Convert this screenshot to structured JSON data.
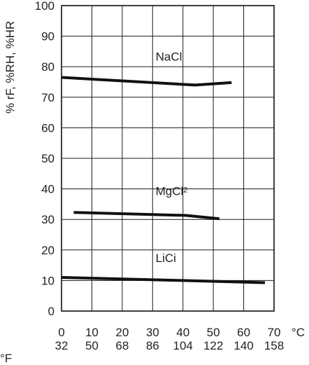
{
  "chart_data": {
    "type": "line",
    "title": "",
    "ylabel": "% rF, %RH, %HR",
    "x_unit_label": "°C",
    "x_secondary_unit_label": "°F",
    "xlim": [
      0,
      70
    ],
    "ylim": [
      0,
      100
    ],
    "grid": true,
    "x_ticks_celsius": [
      "0",
      "10",
      "20",
      "30",
      "40",
      "50",
      "60",
      "70"
    ],
    "x_ticks_fahrenheit": [
      "32",
      "50",
      "68",
      "86",
      "104",
      "122",
      "140",
      "158"
    ],
    "y_ticks": [
      "0",
      "10",
      "20",
      "30",
      "40",
      "50",
      "60",
      "70",
      "80",
      "90",
      "100"
    ],
    "series": [
      {
        "name": "NaCl",
        "label_text": "NaCl",
        "label_subscript": "",
        "label_at": [
          31,
          82
        ],
        "points": [
          [
            0,
            76.5
          ],
          [
            44,
            74.0
          ],
          [
            56,
            74.8
          ]
        ]
      },
      {
        "name": "MgCl2",
        "label_text": "MgCl",
        "label_subscript": "2",
        "label_at": [
          31,
          38
        ],
        "points": [
          [
            4,
            32.3
          ],
          [
            41,
            31.3
          ],
          [
            52,
            30.2
          ]
        ]
      },
      {
        "name": "LiCi",
        "label_text": "LiCi",
        "label_subscript": "",
        "label_at": [
          31,
          16
        ],
        "points": [
          [
            0,
            11.0
          ],
          [
            40,
            10.0
          ],
          [
            67,
            9.3
          ]
        ]
      }
    ]
  }
}
